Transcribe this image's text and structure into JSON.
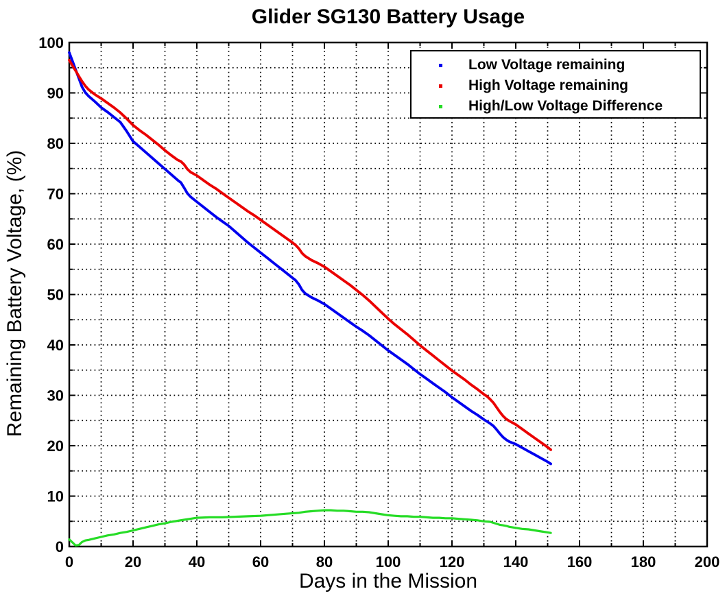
{
  "figure": {
    "title": "Glider SG130 Battery Usage",
    "xlabel": "Days in the Mission",
    "ylabel": "Remaining Battery Voltage, (%)"
  },
  "chart_data": {
    "type": "line",
    "title": "Glider SG130 Battery Usage",
    "xlabel": "Days in the Mission",
    "ylabel": "Remaining Battery Voltage, (%)",
    "xlim": [
      0,
      200
    ],
    "ylim": [
      0,
      100
    ],
    "x_major_ticks": [
      0,
      20,
      40,
      60,
      80,
      100,
      120,
      140,
      160,
      180,
      200
    ],
    "x_minor_step": 10,
    "y_major_ticks": [
      0,
      10,
      20,
      30,
      40,
      50,
      60,
      70,
      80,
      90,
      100
    ],
    "y_minor_step": 5,
    "grid": "dotted black at every minor and major line",
    "background_color": "#ffffff",
    "axis_color": "#000000",
    "legend": {
      "position": "top-right",
      "entries": [
        {
          "label": "Low Voltage remaining",
          "color": "#0000EE",
          "marker": "dot"
        },
        {
          "label": "High Voltage remaining",
          "color": "#EA0000",
          "marker": "dot"
        },
        {
          "label": "High/Low Voltage Difference",
          "color": "#26DC26",
          "marker": "dot"
        }
      ]
    },
    "series": [
      {
        "name": "Low Voltage remaining",
        "color": "#0000EE",
        "points": [
          [
            0,
            98
          ],
          [
            1,
            96.3
          ],
          [
            2,
            94.6
          ],
          [
            3,
            92.9
          ],
          [
            4,
            91.2
          ],
          [
            5,
            90.1
          ],
          [
            6,
            89.4
          ],
          [
            8,
            88.3
          ],
          [
            10,
            87.1
          ],
          [
            12,
            86.2
          ],
          [
            14,
            85.2
          ],
          [
            16,
            84.2
          ],
          [
            18,
            82.4
          ],
          [
            20,
            80.4
          ],
          [
            22,
            79.3
          ],
          [
            24,
            78.2
          ],
          [
            26,
            77.1
          ],
          [
            28,
            76
          ],
          [
            30,
            74.9
          ],
          [
            32,
            73.8
          ],
          [
            34,
            72.7
          ],
          [
            35,
            72.2
          ],
          [
            36,
            71.2
          ],
          [
            37,
            70.1
          ],
          [
            38,
            69.4
          ],
          [
            40,
            68.4
          ],
          [
            42,
            67.4
          ],
          [
            44,
            66.4
          ],
          [
            46,
            65.4
          ],
          [
            48,
            64.5
          ],
          [
            50,
            63.6
          ],
          [
            52,
            62.5
          ],
          [
            54,
            61.4
          ],
          [
            56,
            60.3
          ],
          [
            58,
            59.3
          ],
          [
            60,
            58.3
          ],
          [
            62,
            57.3
          ],
          [
            64,
            56.3
          ],
          [
            66,
            55.3
          ],
          [
            68,
            54.3
          ],
          [
            70,
            53.3
          ],
          [
            71,
            52.8
          ],
          [
            72,
            52
          ],
          [
            73,
            50.9
          ],
          [
            74,
            50.2
          ],
          [
            75,
            49.8
          ],
          [
            76,
            49.4
          ],
          [
            78,
            48.8
          ],
          [
            80,
            48.1
          ],
          [
            82,
            47.2
          ],
          [
            84,
            46.3
          ],
          [
            86,
            45.4
          ],
          [
            88,
            44.5
          ],
          [
            90,
            43.6
          ],
          [
            92,
            42.8
          ],
          [
            94,
            41.9
          ],
          [
            96,
            40.9
          ],
          [
            98,
            39.9
          ],
          [
            100,
            38.9
          ],
          [
            102,
            38
          ],
          [
            104,
            37.1
          ],
          [
            106,
            36.2
          ],
          [
            108,
            35.2
          ],
          [
            110,
            34.2
          ],
          [
            112,
            33.3
          ],
          [
            114,
            32.4
          ],
          [
            116,
            31.5
          ],
          [
            118,
            30.6
          ],
          [
            120,
            29.6
          ],
          [
            122,
            28.7
          ],
          [
            124,
            27.8
          ],
          [
            126,
            26.9
          ],
          [
            128,
            26.1
          ],
          [
            130,
            25.2
          ],
          [
            132,
            24.4
          ],
          [
            133,
            23.9
          ],
          [
            134,
            23.2
          ],
          [
            135,
            22.4
          ],
          [
            136,
            21.7
          ],
          [
            137,
            21.2
          ],
          [
            138,
            20.8
          ],
          [
            140,
            20.3
          ],
          [
            142,
            19.6
          ],
          [
            144,
            18.9
          ],
          [
            146,
            18.2
          ],
          [
            148,
            17.5
          ],
          [
            150,
            16.8
          ],
          [
            151,
            16.4
          ]
        ]
      },
      {
        "name": "High Voltage remaining",
        "color": "#EA0000",
        "points": [
          [
            0,
            96.5
          ],
          [
            1,
            95.4
          ],
          [
            2,
            94.4
          ],
          [
            3,
            93.3
          ],
          [
            4,
            92.3
          ],
          [
            5,
            91.4
          ],
          [
            6,
            90.7
          ],
          [
            8,
            89.7
          ],
          [
            10,
            88.9
          ],
          [
            12,
            88
          ],
          [
            14,
            87.1
          ],
          [
            16,
            86.1
          ],
          [
            18,
            84.9
          ],
          [
            20,
            83.6
          ],
          [
            22,
            82.6
          ],
          [
            24,
            81.7
          ],
          [
            26,
            80.7
          ],
          [
            28,
            79.7
          ],
          [
            30,
            78.6
          ],
          [
            32,
            77.6
          ],
          [
            34,
            76.7
          ],
          [
            35,
            76.4
          ],
          [
            36,
            75.8
          ],
          [
            37,
            74.9
          ],
          [
            38,
            74.3
          ],
          [
            40,
            73.6
          ],
          [
            42,
            72.7
          ],
          [
            44,
            71.8
          ],
          [
            46,
            71
          ],
          [
            48,
            70.1
          ],
          [
            50,
            69.2
          ],
          [
            52,
            68.3
          ],
          [
            54,
            67.4
          ],
          [
            56,
            66.5
          ],
          [
            58,
            65.7
          ],
          [
            60,
            64.8
          ],
          [
            62,
            63.9
          ],
          [
            64,
            63
          ],
          [
            66,
            62.1
          ],
          [
            68,
            61.2
          ],
          [
            70,
            60.3
          ],
          [
            71,
            59.8
          ],
          [
            72,
            59.1
          ],
          [
            73,
            58.2
          ],
          [
            74,
            57.6
          ],
          [
            75,
            57.2
          ],
          [
            76,
            56.8
          ],
          [
            78,
            56.2
          ],
          [
            80,
            55.5
          ],
          [
            82,
            54.6
          ],
          [
            84,
            53.7
          ],
          [
            86,
            52.8
          ],
          [
            88,
            51.9
          ],
          [
            90,
            50.9
          ],
          [
            92,
            49.9
          ],
          [
            94,
            48.8
          ],
          [
            96,
            47.6
          ],
          [
            98,
            46.4
          ],
          [
            100,
            45.2
          ],
          [
            102,
            44.1
          ],
          [
            104,
            43.1
          ],
          [
            106,
            42.1
          ],
          [
            108,
            41
          ],
          [
            110,
            39.9
          ],
          [
            112,
            38.9
          ],
          [
            114,
            37.9
          ],
          [
            116,
            36.9
          ],
          [
            118,
            35.9
          ],
          [
            120,
            34.9
          ],
          [
            122,
            34
          ],
          [
            124,
            33.1
          ],
          [
            126,
            32.1
          ],
          [
            128,
            31.2
          ],
          [
            130,
            30.2
          ],
          [
            131,
            29.8
          ],
          [
            132,
            29.2
          ],
          [
            133,
            28.5
          ],
          [
            134,
            27.6
          ],
          [
            135,
            26.7
          ],
          [
            136,
            25.9
          ],
          [
            137,
            25.3
          ],
          [
            138,
            24.9
          ],
          [
            140,
            24.2
          ],
          [
            142,
            23.3
          ],
          [
            144,
            22.4
          ],
          [
            146,
            21.5
          ],
          [
            148,
            20.6
          ],
          [
            150,
            19.7
          ],
          [
            151,
            19.2
          ]
        ]
      },
      {
        "name": "High/Low Voltage Difference",
        "color": "#26DC26",
        "points": [
          [
            0,
            1.4
          ],
          [
            1,
            0.8
          ],
          [
            2,
            0.2
          ],
          [
            3,
            0.3
          ],
          [
            4,
            0.9
          ],
          [
            5,
            1.2
          ],
          [
            6,
            1.3
          ],
          [
            8,
            1.6
          ],
          [
            10,
            1.9
          ],
          [
            12,
            2.2
          ],
          [
            14,
            2.4
          ],
          [
            16,
            2.7
          ],
          [
            18,
            2.9
          ],
          [
            20,
            3.2
          ],
          [
            22,
            3.5
          ],
          [
            24,
            3.8
          ],
          [
            26,
            4.1
          ],
          [
            28,
            4.4
          ],
          [
            30,
            4.6
          ],
          [
            32,
            4.9
          ],
          [
            34,
            5.1
          ],
          [
            36,
            5.3
          ],
          [
            38,
            5.5
          ],
          [
            40,
            5.7
          ],
          [
            44,
            5.8
          ],
          [
            48,
            5.8
          ],
          [
            52,
            5.9
          ],
          [
            56,
            6
          ],
          [
            60,
            6.1
          ],
          [
            64,
            6.3
          ],
          [
            68,
            6.5
          ],
          [
            72,
            6.7
          ],
          [
            74,
            6.9
          ],
          [
            76,
            7
          ],
          [
            78,
            7.1
          ],
          [
            80,
            7.2
          ],
          [
            82,
            7.2
          ],
          [
            84,
            7.1
          ],
          [
            86,
            7.1
          ],
          [
            88,
            7
          ],
          [
            90,
            6.9
          ],
          [
            92,
            6.9
          ],
          [
            94,
            6.8
          ],
          [
            96,
            6.6
          ],
          [
            98,
            6.4
          ],
          [
            100,
            6.2
          ],
          [
            102,
            6.1
          ],
          [
            104,
            6
          ],
          [
            106,
            6
          ],
          [
            108,
            5.9
          ],
          [
            110,
            5.9
          ],
          [
            112,
            5.8
          ],
          [
            114,
            5.7
          ],
          [
            116,
            5.7
          ],
          [
            118,
            5.6
          ],
          [
            120,
            5.6
          ],
          [
            122,
            5.5
          ],
          [
            124,
            5.4
          ],
          [
            126,
            5.3
          ],
          [
            128,
            5.2
          ],
          [
            130,
            5
          ],
          [
            132,
            4.9
          ],
          [
            133,
            4.7
          ],
          [
            134,
            4.5
          ],
          [
            135,
            4.3
          ],
          [
            136,
            4.2
          ],
          [
            137,
            4.1
          ],
          [
            138,
            3.9
          ],
          [
            140,
            3.7
          ],
          [
            142,
            3.5
          ],
          [
            144,
            3.4
          ],
          [
            146,
            3.2
          ],
          [
            148,
            3
          ],
          [
            150,
            2.8
          ],
          [
            151,
            2.7
          ]
        ]
      }
    ]
  }
}
